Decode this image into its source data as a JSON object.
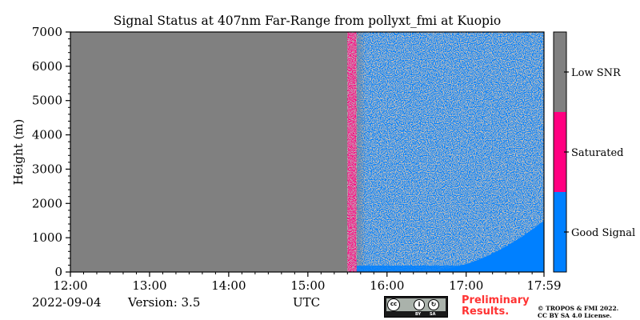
{
  "chart_data": {
    "type": "heatmap",
    "title": "Signal Status at 407nm Far-Range from pollyxt_fmi at Kuopio",
    "xlabel": "UTC",
    "ylabel": "Height (m)",
    "x_ticks": [
      "12:00",
      "13:00",
      "14:00",
      "15:00",
      "16:00",
      "17:00",
      "17:59"
    ],
    "y_ticks": [
      "0",
      "1000",
      "2000",
      "3000",
      "4000",
      "5000",
      "6000",
      "7000"
    ],
    "x_range": [
      "12:00",
      "17:59"
    ],
    "ylim": [
      0,
      7000
    ],
    "grid": false,
    "colorbar": {
      "placement": "right",
      "categories": [
        {
          "label": "Good Signal",
          "color": "#0080ff"
        },
        {
          "label": "Saturated",
          "color": "#ff0080"
        },
        {
          "label": "Low SNR",
          "color": "#808080"
        }
      ]
    },
    "regions": [
      {
        "from": "12:00",
        "to": "15:30",
        "height": [
          0,
          7000
        ],
        "status": "Low SNR"
      },
      {
        "from": "15:30",
        "to": "15:37",
        "height": [
          0,
          7000
        ],
        "status": "Saturated / Low SNR"
      },
      {
        "from": "15:37",
        "to": "17:59",
        "height": [
          0,
          7000
        ],
        "status": "Good Signal / Low SNR"
      },
      {
        "from": "16:30",
        "to": "17:59",
        "height": [
          0,
          1500
        ],
        "status": "Good Signal"
      }
    ]
  },
  "footer": {
    "date": "2022-09-04",
    "version": "Version: 3.5",
    "preliminary": [
      "Preliminary",
      "Results."
    ],
    "copyright": [
      "© TROPOS & FMI 2022.",
      "CC BY SA 4.0 License."
    ],
    "license_badge": {
      "cc": "cc",
      "by": "BY",
      "sa": "SA"
    }
  },
  "colors": {
    "good": "#0080ff",
    "saturated": "#ff0080",
    "low_snr": "#808080",
    "prelim_text": "#ff3333"
  }
}
